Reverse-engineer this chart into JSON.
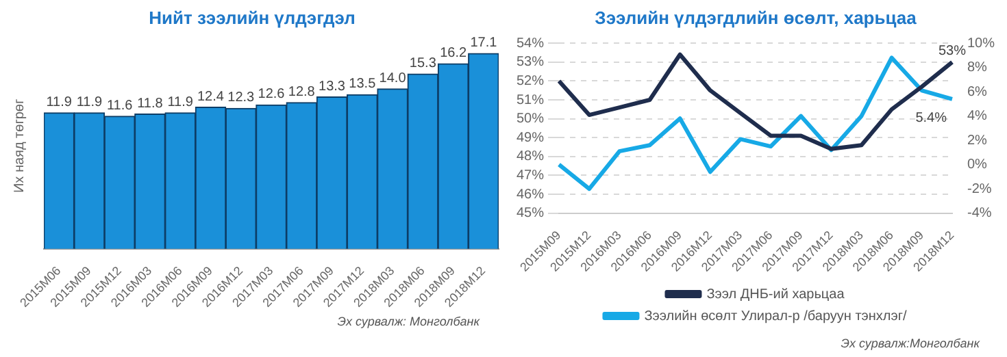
{
  "chart_data": [
    {
      "type": "bar",
      "title": "Нийт зээлийн үлдэгдэл",
      "ylabel": "Их наяд төгрөг",
      "categories": [
        "2015M06",
        "2015M09",
        "2015M12",
        "2016M03",
        "2016M06",
        "2016M09",
        "2016M12",
        "2017M03",
        "2017M06",
        "2017M09",
        "2017M12",
        "2018M03",
        "2018M06",
        "2018M09",
        "2018M12"
      ],
      "values": [
        11.9,
        11.9,
        11.6,
        11.8,
        11.9,
        12.4,
        12.3,
        12.6,
        12.8,
        13.3,
        13.5,
        14.0,
        15.3,
        16.2,
        17.1
      ],
      "color": "#1a90d9",
      "value_labels": [
        "11.9",
        "11.9",
        "11.6",
        "11.8",
        "11.9",
        "12.4",
        "12.3",
        "12.6",
        "12.8",
        "13.3",
        "13.5",
        "14.0",
        "15.3",
        "16.2",
        "17.1"
      ],
      "annotations": [
        "Эх сурвалж: Монголбанк"
      ]
    },
    {
      "type": "line",
      "title": "Зээлийн үлдэгдлийн өсөлт, харьцаа",
      "categories": [
        "2015M09",
        "2015M12",
        "2016M03",
        "2016M06",
        "2016M09",
        "2016M12",
        "2017M03",
        "2017M06",
        "2017M09",
        "2017M12",
        "2018M03",
        "2018M06",
        "2018M09",
        "2018M12"
      ],
      "series": [
        {
          "name": "Зээл ДНБ-ий харьцаа",
          "color": "#1f2d4d",
          "values": [
            52.0,
            50.2,
            50.6,
            51.0,
            53.4,
            51.5,
            50.3,
            49.1,
            49.1,
            48.4,
            48.6,
            50.5,
            51.7,
            53.0
          ],
          "value_labels": [
            null,
            null,
            null,
            null,
            null,
            null,
            null,
            null,
            null,
            null,
            null,
            null,
            null,
            "53%"
          ]
        },
        {
          "name": "Зээлийн өсөлт Улирал-р /баруун тэнхлэг/",
          "color": "#17a9e6",
          "axis": "y2",
          "values": [
            0.0,
            -2.0,
            1.1,
            1.6,
            3.8,
            -0.6,
            2.1,
            1.5,
            4.0,
            1.2,
            4.0,
            8.8,
            6.1,
            5.4
          ],
          "value_labels": [
            null,
            null,
            null,
            null,
            null,
            null,
            null,
            null,
            null,
            null,
            null,
            null,
            null,
            "5.4%"
          ]
        }
      ],
      "ylim": [
        45,
        54
      ],
      "yticks": [
        {
          "value": 45,
          "label": "45%"
        },
        {
          "value": 46,
          "label": "46%"
        },
        {
          "value": 47,
          "label": "47%"
        },
        {
          "value": 48,
          "label": "48%"
        },
        {
          "value": 49,
          "label": "49%"
        },
        {
          "value": 50,
          "label": "50%"
        },
        {
          "value": 51,
          "label": "51%"
        },
        {
          "value": 52,
          "label": "52%"
        },
        {
          "value": 53,
          "label": "53%"
        },
        {
          "value": 54,
          "label": "54%"
        }
      ],
      "y2lim": [
        -4,
        10
      ],
      "y2ticks": [
        {
          "value": -4,
          "label": "-4%"
        },
        {
          "value": -2,
          "label": "-2%"
        },
        {
          "value": 0,
          "label": "0%"
        },
        {
          "value": 2,
          "label": "2%"
        },
        {
          "value": 4,
          "label": "4%"
        },
        {
          "value": 6,
          "label": "6%"
        },
        {
          "value": 8,
          "label": "8%"
        },
        {
          "value": 10,
          "label": "10%"
        }
      ],
      "grid": "y",
      "legend": "bottom",
      "annotations": [
        "Эх сурвалж:Монголбанк"
      ]
    }
  ]
}
